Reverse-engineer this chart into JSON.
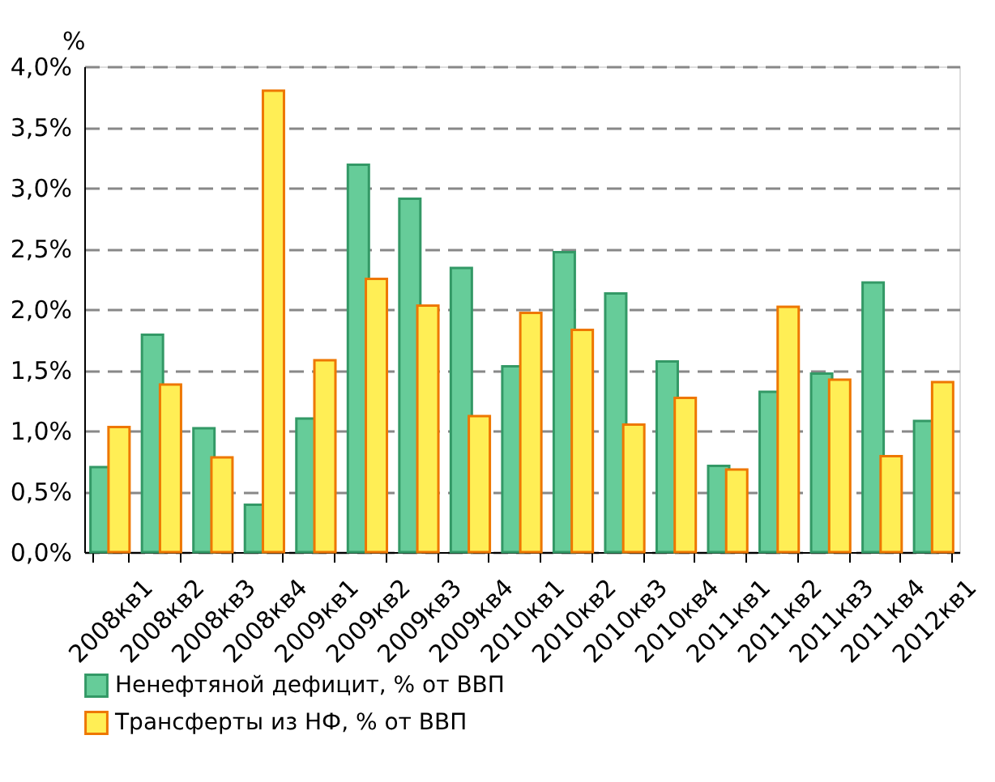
{
  "chart_data": {
    "type": "bar",
    "ylabel": "%",
    "categories": [
      "2008кв1",
      "2008кв2",
      "2008кв3",
      "2008кв4",
      "2009кв1",
      "2009кв2",
      "2009кв3",
      "2009кв4",
      "2010кв1",
      "2010кв2",
      "2010кв3",
      "2010кв4",
      "2011кв1",
      "2011кв2",
      "2011кв3",
      "2011кв4",
      "2012кв1"
    ],
    "series": [
      {
        "name": "Ненефтяной дефицит, % от ВВП",
        "color": "#66cc99",
        "values": [
          0.7,
          1.79,
          1.02,
          0.39,
          1.1,
          3.19,
          2.91,
          2.34,
          1.53,
          2.47,
          2.13,
          1.57,
          0.71,
          1.32,
          1.47,
          2.22,
          1.08
        ]
      },
      {
        "name": "Трансферты из НФ, % от ВВП",
        "color": "#ffee55",
        "values": [
          1.03,
          1.38,
          0.78,
          3.8,
          1.58,
          2.25,
          2.03,
          1.12,
          1.97,
          1.83,
          1.05,
          1.27,
          0.68,
          2.02,
          1.42,
          0.79,
          1.4
        ]
      }
    ],
    "ylim": [
      0,
      4
    ],
    "yticks": [
      {
        "value": 0,
        "label": "0,0%"
      },
      {
        "value": 0.5,
        "label": "0,5%"
      },
      {
        "value": 1,
        "label": "1,0%"
      },
      {
        "value": 1.5,
        "label": "1,5%"
      },
      {
        "value": 2,
        "label": "2,0%"
      },
      {
        "value": 2.5,
        "label": "2,5%"
      },
      {
        "value": 3,
        "label": "3,0%"
      },
      {
        "value": 3.5,
        "label": "3,5%"
      },
      {
        "value": 4,
        "label": "4,0%"
      }
    ],
    "grid": "y",
    "legend": "bottom"
  }
}
